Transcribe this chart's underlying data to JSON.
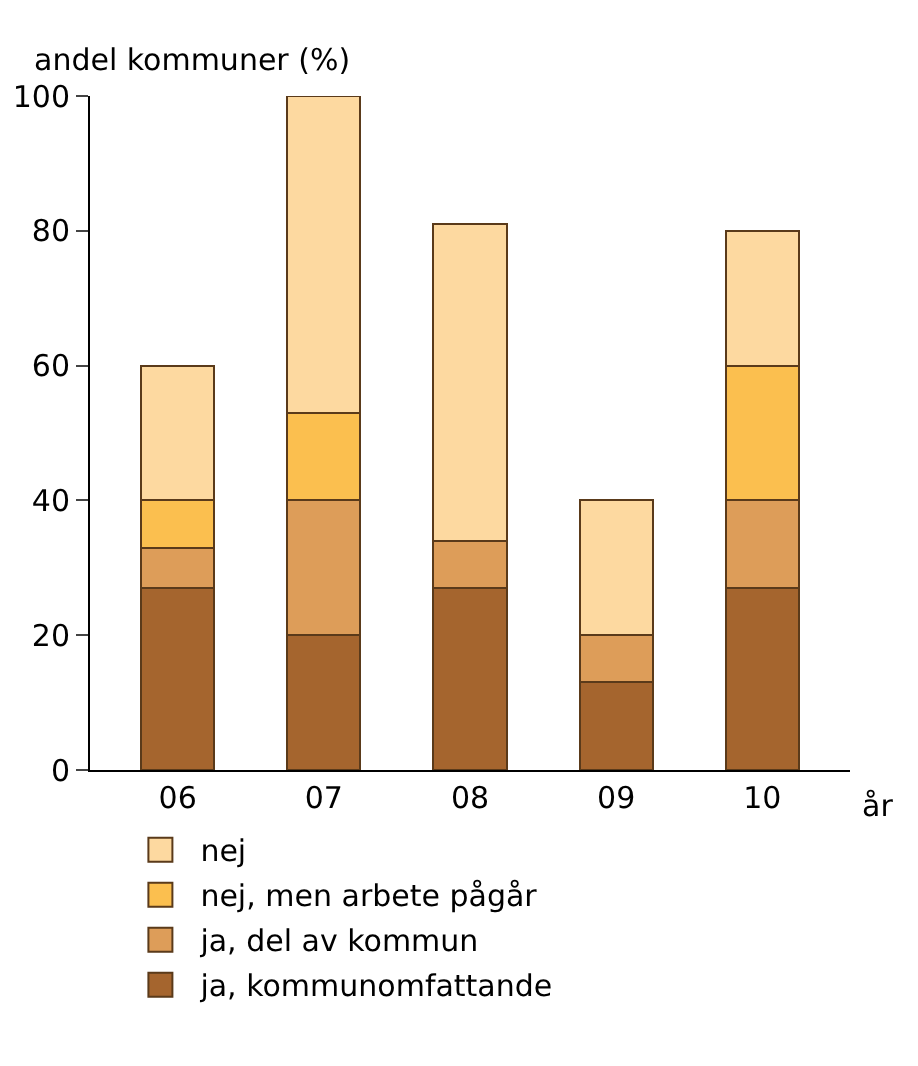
{
  "chart_data": {
    "type": "bar",
    "stacked": true,
    "xlabel": "år",
    "ylabel": "andel kommuner (%)",
    "categories": [
      "06",
      "07",
      "08",
      "09",
      "10"
    ],
    "series": [
      {
        "name": "ja, kommunomfattande",
        "color": "#a5652e",
        "values": [
          27,
          20,
          27,
          13,
          27
        ]
      },
      {
        "name": "ja, del av kommun",
        "color": "#dd9d59",
        "values": [
          6,
          20,
          7,
          7,
          13
        ]
      },
      {
        "name": "nej, men arbete pågår",
        "color": "#fbbf4f",
        "values": [
          7,
          13,
          0,
          0,
          20
        ]
      },
      {
        "name": "nej",
        "color": "#fdd9a0",
        "values": [
          20,
          47,
          47,
          20,
          20
        ]
      }
    ],
    "ylim": [
      0,
      100
    ],
    "yticks": [
      0,
      20,
      40,
      60,
      80,
      100
    ],
    "grid": false,
    "legend": "bottom"
  }
}
